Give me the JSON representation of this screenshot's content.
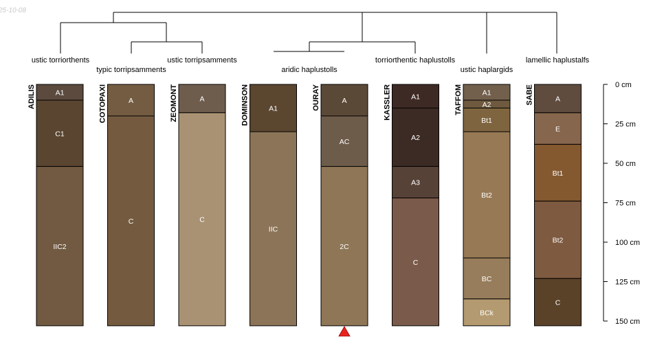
{
  "stamp": "25-10-08",
  "depth_axis": {
    "unit": "cm",
    "max": 150,
    "ticks": [
      {
        "value": 0,
        "label": "0 cm"
      },
      {
        "value": 25,
        "label": "25 cm"
      },
      {
        "value": 50,
        "label": "50 cm"
      },
      {
        "value": 75,
        "label": "75 cm"
      },
      {
        "value": 100,
        "label": "100 cm"
      },
      {
        "value": 125,
        "label": "125 cm"
      },
      {
        "value": 150,
        "label": "150 cm"
      }
    ]
  },
  "taxa_labels": [
    "ustic torriorthents",
    "typic torripsamments",
    "ustic torripsamments",
    "aridic haplustolls",
    "torriorthentic haplustolls",
    "ustic haplargids",
    "lamellic haplustalfs"
  ],
  "marker": {
    "profile_index": 4,
    "color": "#e8231e"
  },
  "profiles": [
    {
      "name": "ADILIS",
      "horizons": [
        {
          "name": "A1",
          "top": 0,
          "bottom": 10,
          "color": "#5b4a3d"
        },
        {
          "name": "C1",
          "top": 10,
          "bottom": 52,
          "color": "#5a4531"
        },
        {
          "name": "IIC2",
          "top": 52,
          "bottom": 153,
          "color": "#715a41"
        }
      ]
    },
    {
      "name": "COTOPAXI",
      "horizons": [
        {
          "name": "A",
          "top": 0,
          "bottom": 20,
          "color": "#745c42"
        },
        {
          "name": "C",
          "top": 20,
          "bottom": 153,
          "color": "#745b3f"
        }
      ]
    },
    {
      "name": "ZEOMONT",
      "horizons": [
        {
          "name": "A",
          "top": 0,
          "bottom": 18,
          "color": "#6e5d4d"
        },
        {
          "name": "C",
          "top": 18,
          "bottom": 153,
          "color": "#a99273"
        }
      ]
    },
    {
      "name": "DOMINSON",
      "horizons": [
        {
          "name": "A1",
          "top": 0,
          "bottom": 30,
          "color": "#5b4630"
        },
        {
          "name": "IIC",
          "top": 30,
          "bottom": 153,
          "color": "#8c7458"
        }
      ]
    },
    {
      "name": "OURAY",
      "horizons": [
        {
          "name": "A",
          "top": 0,
          "bottom": 20,
          "color": "#5b4937"
        },
        {
          "name": "AC",
          "top": 20,
          "bottom": 52,
          "color": "#6e5c4b"
        },
        {
          "name": "2C",
          "top": 52,
          "bottom": 153,
          "color": "#8e7656"
        }
      ]
    },
    {
      "name": "KASSLER",
      "horizons": [
        {
          "name": "A1",
          "top": 0,
          "bottom": 15,
          "color": "#3e2a24"
        },
        {
          "name": "A2",
          "top": 15,
          "bottom": 52,
          "color": "#3c2b25"
        },
        {
          "name": "A3",
          "top": 52,
          "bottom": 72,
          "color": "#574237"
        },
        {
          "name": "C",
          "top": 72,
          "bottom": 153,
          "color": "#7a5a4a"
        }
      ]
    },
    {
      "name": "TAFFOM",
      "horizons": [
        {
          "name": "A1",
          "top": 0,
          "bottom": 10,
          "color": "#72604c"
        },
        {
          "name": "A2",
          "top": 10,
          "bottom": 15,
          "color": "#6f5a3f"
        },
        {
          "name": "Bt1",
          "top": 15,
          "bottom": 30,
          "color": "#7f653f"
        },
        {
          "name": "Bt2",
          "top": 30,
          "bottom": 110,
          "color": "#977a55"
        },
        {
          "name": "BC",
          "top": 110,
          "bottom": 136,
          "color": "#987d5c"
        },
        {
          "name": "BCk",
          "top": 136,
          "bottom": 153,
          "color": "#b49a70"
        }
      ]
    },
    {
      "name": "SABE",
      "horizons": [
        {
          "name": "A",
          "top": 0,
          "bottom": 18,
          "color": "#5f4c3f"
        },
        {
          "name": "E",
          "top": 18,
          "bottom": 38,
          "color": "#86664c"
        },
        {
          "name": "Bt1",
          "top": 38,
          "bottom": 74,
          "color": "#85592f"
        },
        {
          "name": "Bt2",
          "top": 74,
          "bottom": 123,
          "color": "#7e5a40"
        },
        {
          "name": "C",
          "top": 123,
          "bottom": 153,
          "color": "#5a4229"
        }
      ]
    }
  ]
}
